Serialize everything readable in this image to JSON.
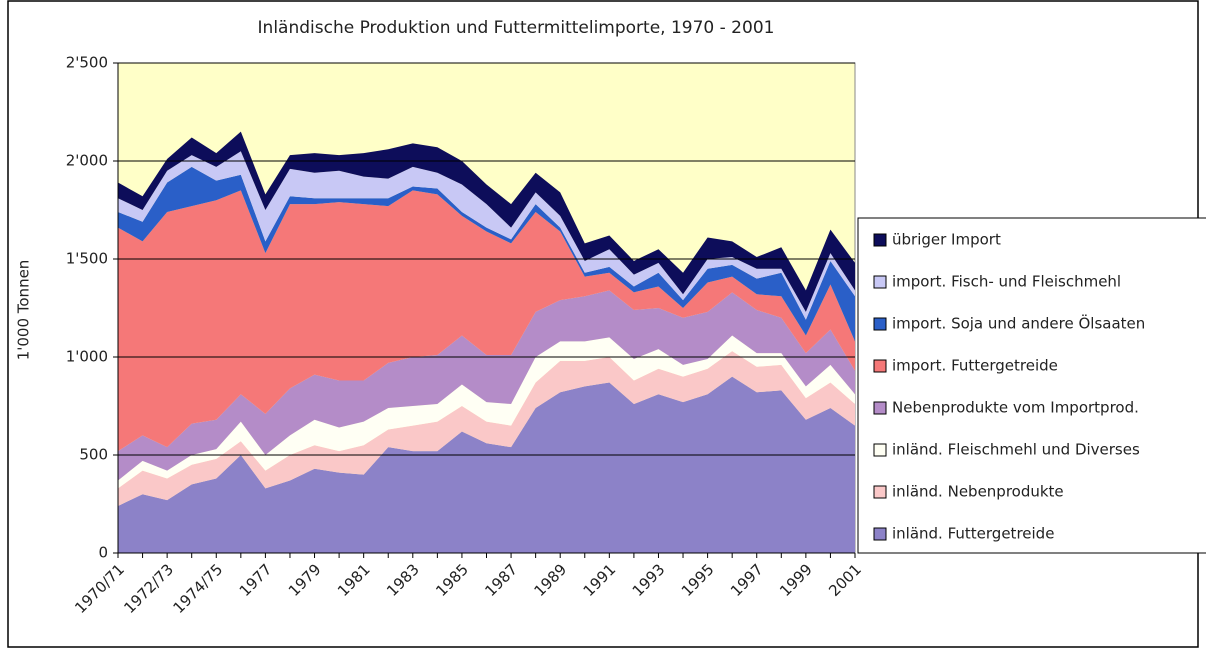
{
  "chart_data": {
    "type": "stacked_area",
    "title": "Inländische Produktion und Futtermittelimporte, 1970 - 2001",
    "y_label": "1'000 Tonnen",
    "categories": [
      "1970/71",
      null,
      "1972/73",
      null,
      "1974/75",
      null,
      "1977",
      null,
      "1979",
      null,
      "1981",
      null,
      "1983",
      null,
      "1985",
      null,
      "1987",
      null,
      "1989",
      null,
      "1991",
      null,
      "1993",
      null,
      "1995",
      null,
      "1997",
      null,
      "1999",
      null,
      "2001"
    ],
    "ylim": [
      0,
      2500
    ],
    "yticks": [
      0,
      500,
      {
        "value": 1000,
        "label": "1'000"
      },
      {
        "value": 1500,
        "label": "1'500"
      },
      {
        "value": 2000,
        "label": "2'000"
      },
      {
        "value": 2500,
        "label": "2'500"
      }
    ],
    "grid": true,
    "background": "#ffffc8",
    "legend": "right",
    "series": [
      {
        "name": "inländ. Futtergetreide",
        "color": "#8c82c8",
        "values": [
          240,
          300,
          270,
          350,
          380,
          500,
          330,
          370,
          430,
          410,
          400,
          540,
          520,
          520,
          620,
          560,
          540,
          740,
          820,
          850,
          870,
          760,
          810,
          770,
          810,
          900,
          820,
          830,
          680,
          740,
          650
        ]
      },
      {
        "name": "inländ. Nebenprodukte",
        "color": "#fac8c8",
        "values": [
          90,
          120,
          110,
          100,
          100,
          70,
          90,
          130,
          120,
          110,
          150,
          90,
          130,
          150,
          130,
          110,
          110,
          130,
          160,
          130,
          130,
          120,
          130,
          130,
          130,
          130,
          130,
          130,
          110,
          130,
          110
        ]
      },
      {
        "name": "inländ. Fleischmehl und Diverses",
        "color": "#fffff4",
        "values": [
          40,
          50,
          40,
          50,
          50,
          100,
          80,
          100,
          130,
          120,
          120,
          110,
          100,
          90,
          110,
          100,
          110,
          130,
          100,
          100,
          100,
          110,
          100,
          60,
          50,
          80,
          70,
          60,
          60,
          90,
          50
        ]
      },
      {
        "name": "Nebenprodukte vom Importprod.",
        "color": "#b48cc8",
        "values": [
          150,
          130,
          120,
          160,
          150,
          140,
          210,
          240,
          230,
          240,
          210,
          230,
          250,
          250,
          250,
          240,
          250,
          230,
          210,
          230,
          240,
          250,
          210,
          240,
          240,
          220,
          220,
          180,
          170,
          180,
          120
        ]
      },
      {
        "name": "import. Futtergetreide",
        "color": "#f57878",
        "values": [
          1140,
          990,
          1200,
          1110,
          1120,
          1040,
          820,
          940,
          870,
          910,
          900,
          800,
          850,
          820,
          610,
          630,
          570,
          510,
          350,
          100,
          90,
          90,
          110,
          50,
          150,
          80,
          80,
          110,
          90,
          230,
          150
        ]
      },
      {
        "name": "import. Soja und andere Ölsaaten",
        "color": "#2a5fc8",
        "values": [
          80,
          100,
          150,
          200,
          100,
          80,
          60,
          40,
          30,
          20,
          30,
          40,
          20,
          30,
          20,
          20,
          20,
          40,
          20,
          20,
          30,
          30,
          70,
          40,
          70,
          60,
          80,
          120,
          80,
          120,
          230
        ]
      },
      {
        "name": "import. Fisch- und Fleischmehl",
        "color": "#c8c8f5",
        "values": [
          70,
          60,
          60,
          60,
          70,
          120,
          160,
          140,
          130,
          140,
          110,
          100,
          100,
          80,
          140,
          120,
          60,
          60,
          60,
          60,
          90,
          60,
          50,
          30,
          50,
          40,
          50,
          20,
          40,
          40,
          30
        ]
      },
      {
        "name": "übriger Import",
        "color": "#0d0d5a",
        "values": [
          80,
          70,
          60,
          90,
          70,
          100,
          80,
          70,
          100,
          80,
          120,
          150,
          120,
          130,
          120,
          100,
          120,
          100,
          120,
          90,
          70,
          70,
          70,
          110,
          110,
          80,
          60,
          110,
          110,
          120,
          140
        ]
      }
    ]
  }
}
